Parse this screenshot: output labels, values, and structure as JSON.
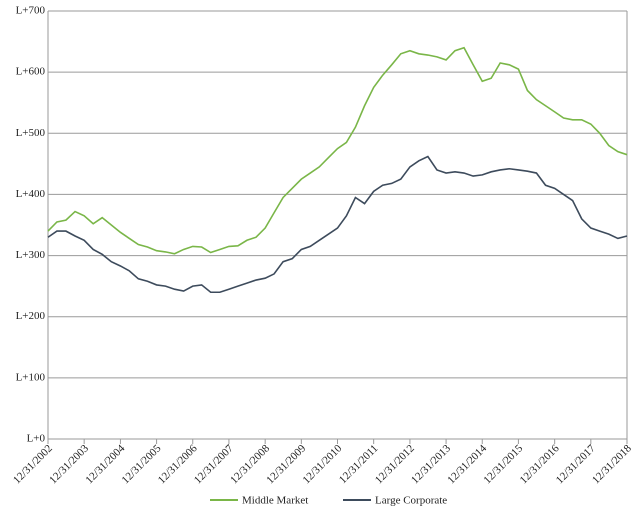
{
  "chart_data": {
    "type": "line",
    "x": [
      "2002-12-31",
      "2003-03-31",
      "2003-06-30",
      "2003-09-30",
      "2003-12-31",
      "2004-03-31",
      "2004-06-30",
      "2004-09-30",
      "2004-12-31",
      "2005-03-31",
      "2005-06-30",
      "2005-09-30",
      "2005-12-31",
      "2006-03-31",
      "2006-06-30",
      "2006-09-30",
      "2006-12-31",
      "2007-03-31",
      "2007-06-30",
      "2007-09-30",
      "2007-12-31",
      "2008-03-31",
      "2008-06-30",
      "2008-09-30",
      "2008-12-31",
      "2009-03-31",
      "2009-06-30",
      "2009-09-30",
      "2009-12-31",
      "2010-03-31",
      "2010-06-30",
      "2010-09-30",
      "2010-12-31",
      "2011-03-31",
      "2011-06-30",
      "2011-09-30",
      "2011-12-31",
      "2012-03-31",
      "2012-06-30",
      "2012-09-30",
      "2012-12-31",
      "2013-03-31",
      "2013-06-30",
      "2013-09-30",
      "2013-12-31",
      "2014-03-31",
      "2014-06-30",
      "2014-09-30",
      "2014-12-31",
      "2015-03-31",
      "2015-06-30",
      "2015-09-30",
      "2015-12-31",
      "2016-03-31",
      "2016-06-30",
      "2016-09-30",
      "2016-12-31",
      "2017-03-31",
      "2017-06-30",
      "2017-09-30",
      "2017-12-31",
      "2018-03-31",
      "2018-06-30",
      "2018-09-30",
      "2018-12-31"
    ],
    "series": [
      {
        "name": "Middle Market",
        "color": "#7ab648",
        "values": [
          340,
          355,
          358,
          372,
          365,
          352,
          362,
          350,
          338,
          328,
          318,
          314,
          308,
          306,
          303,
          310,
          315,
          314,
          305,
          310,
          315,
          316,
          325,
          330,
          345,
          370,
          395,
          410,
          425,
          435,
          445,
          460,
          475,
          485,
          510,
          545,
          575,
          595,
          612,
          630,
          635,
          630,
          628,
          625,
          620,
          635,
          640,
          612,
          585,
          590,
          615,
          612,
          605,
          570,
          555,
          545,
          535,
          525,
          522,
          522,
          515,
          500,
          480,
          470,
          465
        ]
      },
      {
        "name": "Large Corporate",
        "color": "#3d4b5c",
        "values": [
          330,
          340,
          340,
          332,
          325,
          310,
          302,
          290,
          283,
          275,
          262,
          258,
          252,
          250,
          245,
          242,
          250,
          252,
          240,
          240,
          245,
          250,
          255,
          260,
          263,
          270,
          290,
          295,
          310,
          315,
          325,
          335,
          345,
          365,
          395,
          385,
          405,
          415,
          418,
          425,
          445,
          455,
          462,
          440,
          435,
          437,
          435,
          430,
          432,
          437,
          440,
          442,
          440,
          438,
          435,
          415,
          410,
          400,
          390,
          360,
          345,
          340,
          335,
          328,
          332
        ]
      }
    ],
    "xlim": [
      "2002-12-31",
      "2018-12-31"
    ],
    "xticks": [
      {
        "value": "2002-12-31",
        "label": "12/31/2002"
      },
      {
        "value": "2003-12-31",
        "label": "12/31/2003"
      },
      {
        "value": "2004-12-31",
        "label": "12/31/2004"
      },
      {
        "value": "2005-12-31",
        "label": "12/31/2005"
      },
      {
        "value": "2006-12-31",
        "label": "12/31/2006"
      },
      {
        "value": "2007-12-31",
        "label": "12/31/2007"
      },
      {
        "value": "2008-12-31",
        "label": "12/31/2008"
      },
      {
        "value": "2009-12-31",
        "label": "12/31/2009"
      },
      {
        "value": "2010-12-31",
        "label": "12/31/2010"
      },
      {
        "value": "2011-12-31",
        "label": "12/31/2011"
      },
      {
        "value": "2012-12-31",
        "label": "12/31/2012"
      },
      {
        "value": "2013-12-31",
        "label": "12/31/2013"
      },
      {
        "value": "2014-12-31",
        "label": "12/31/2014"
      },
      {
        "value": "2015-12-31",
        "label": "12/31/2015"
      },
      {
        "value": "2016-12-31",
        "label": "12/31/2016"
      },
      {
        "value": "2017-12-31",
        "label": "12/31/2017"
      },
      {
        "value": "2018-12-31",
        "label": "12/31/2018"
      }
    ],
    "ylim": [
      0,
      700
    ],
    "yticks": [
      {
        "value": 0,
        "label": "L+0"
      },
      {
        "value": 100,
        "label": "L+100"
      },
      {
        "value": 200,
        "label": "L+200"
      },
      {
        "value": 300,
        "label": "L+300"
      },
      {
        "value": 400,
        "label": "L+400"
      },
      {
        "value": 500,
        "label": "L+500"
      },
      {
        "value": 600,
        "label": "L+600"
      },
      {
        "value": 700,
        "label": "L+700"
      }
    ],
    "grid": true,
    "legend": "bottom"
  }
}
